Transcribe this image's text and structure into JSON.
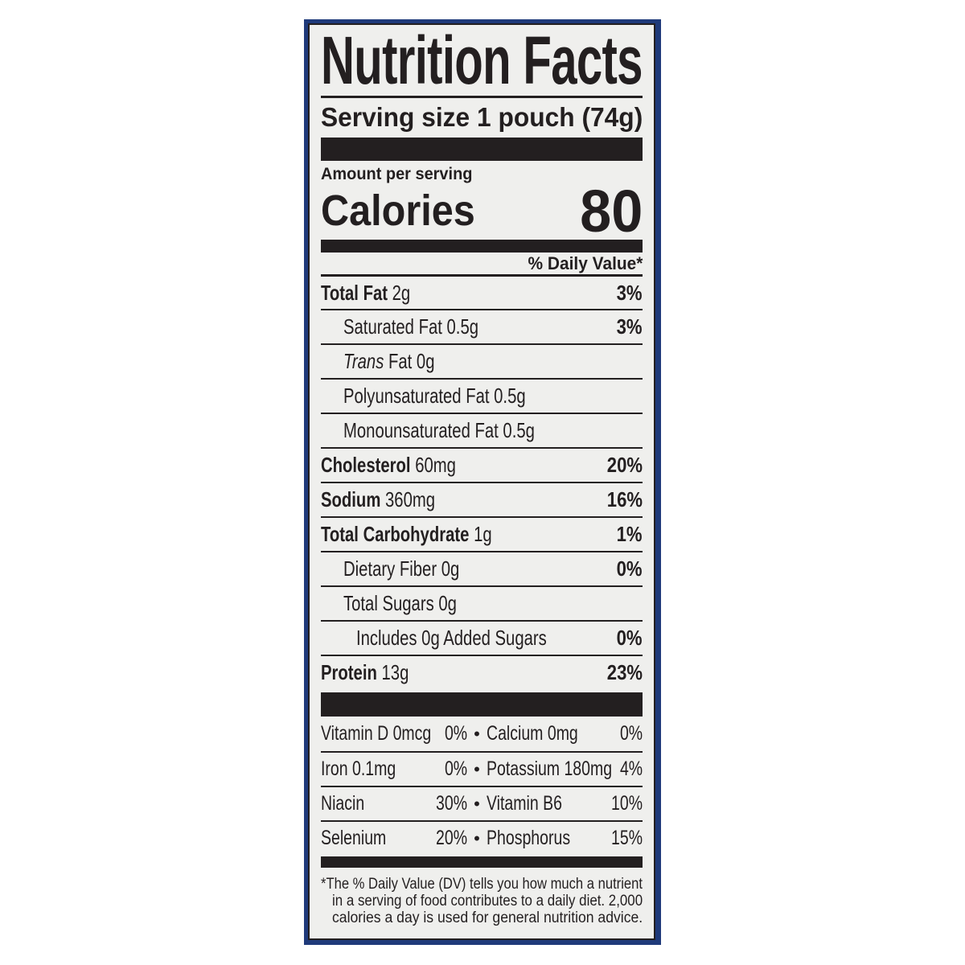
{
  "title": "Nutrition Facts",
  "serving_size": "Serving size 1 pouch (74g)",
  "amount_per_serving": "Amount per serving",
  "calories_label": "Calories",
  "calories_value": "80",
  "daily_value_header": "% Daily Value*",
  "nutrients": [
    {
      "name": "Total Fat",
      "amount": "2g",
      "dv": "3%",
      "bold": true,
      "indent": 0
    },
    {
      "name": "Saturated Fat",
      "amount": "0.5g",
      "dv": "3%",
      "bold": false,
      "indent": 1
    },
    {
      "name": "Trans",
      "name_suffix": "Fat",
      "amount": "0g",
      "dv": "",
      "bold": false,
      "indent": 1
    },
    {
      "name": "Polyunsaturated Fat",
      "amount": "0.5g",
      "dv": "",
      "bold": false,
      "indent": 1
    },
    {
      "name": "Monounsaturated Fat",
      "amount": "0.5g",
      "dv": "",
      "bold": false,
      "indent": 1
    },
    {
      "name": "Cholesterol",
      "amount": "60mg",
      "dv": "20%",
      "bold": true,
      "indent": 0
    },
    {
      "name": "Sodium",
      "amount": "360mg",
      "dv": "16%",
      "bold": true,
      "indent": 0
    },
    {
      "name": "Total Carbohydrate",
      "amount": "1g",
      "dv": "1%",
      "bold": true,
      "indent": 0
    },
    {
      "name": "Dietary Fiber",
      "amount": "0g",
      "dv": "0%",
      "bold": false,
      "indent": 1
    },
    {
      "name": "Total Sugars",
      "amount": "0g",
      "dv": "",
      "bold": false,
      "indent": 1
    },
    {
      "name": "Includes 0g Added Sugars",
      "amount": "",
      "dv": "0%",
      "bold": false,
      "indent": 2
    },
    {
      "name": "Protein",
      "amount": "13g",
      "dv": "23%",
      "bold": true,
      "indent": 0
    }
  ],
  "vitamins": [
    [
      {
        "name": "Vitamin D 0mcg",
        "dv": "0%"
      },
      {
        "name": "Calcium 0mg",
        "dv": "0%"
      }
    ],
    [
      {
        "name": "Iron 0.1mg",
        "dv": "0%"
      },
      {
        "name": "Potassium 180mg",
        "dv": "4%"
      }
    ],
    [
      {
        "name": "Niacin",
        "dv": "30%"
      },
      {
        "name": "Vitamin B6",
        "dv": "10%"
      }
    ],
    [
      {
        "name": "Selenium",
        "dv": "20%"
      },
      {
        "name": "Phosphorus",
        "dv": "15%"
      }
    ]
  ],
  "bullet": "•",
  "footnote": [
    "*The % Daily Value (DV) tells you how much a nutrient",
    "in a serving of food contributes to a daily diet. 2,000",
    "calories a day is used for general nutrition advice."
  ],
  "colors": {
    "panel_border": "#1f3a7a",
    "ink": "#231f20",
    "label_bg": "#efefed"
  }
}
